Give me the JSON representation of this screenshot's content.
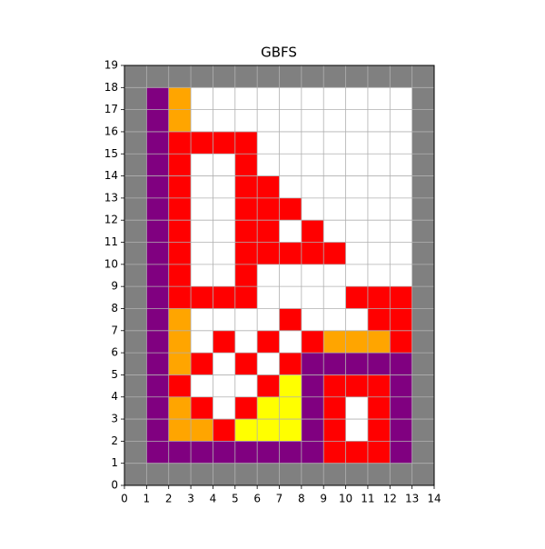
{
  "chart_data": {
    "type": "grid",
    "title": "GBFS",
    "xlim": [
      0,
      14
    ],
    "ylim": [
      0,
      19
    ],
    "xticks": [
      0,
      1,
      2,
      3,
      4,
      5,
      6,
      7,
      8,
      9,
      10,
      11,
      12,
      13,
      14
    ],
    "yticks": [
      0,
      1,
      2,
      3,
      4,
      5,
      6,
      7,
      8,
      9,
      10,
      11,
      12,
      13,
      14,
      15,
      16,
      17,
      18,
      19
    ],
    "grid": true,
    "palette": {
      "G": "#808080",
      "P": "#800080",
      "O": "#ffa500",
      "R": "#ff0000",
      "W": "#ffffff",
      "Y": "#ffff00"
    },
    "cells": [
      "GGGGGGGGGGGGGG",
      "GPOWWWWWWWWWWG",
      "GPOWWWWWWWWWWG",
      "GPRRRRWWWWWWWG",
      "GPRWWRWWWWWWWG",
      "GPRWWRRWWWWWWG",
      "GPRWWRRRWWWWWG",
      "GPRWWRRWRWWWWG",
      "GPRWWRRRRRWWWG",
      "GPRWWRWWWWWWWG",
      "GPRRRRWWWWRRRG",
      "GPOWWWWRWWWRRG",
      "GPOWRWRWROOORG",
      "GPORWRWRPPPPPG",
      "GPRWWWRYPRRRPG",
      "GPORWRYYPRWRPG",
      "GPOORYYYPRWRPG",
      "GPPPPPPPPRRRPG",
      "GGGGGGGGGGGGGG"
    ]
  }
}
